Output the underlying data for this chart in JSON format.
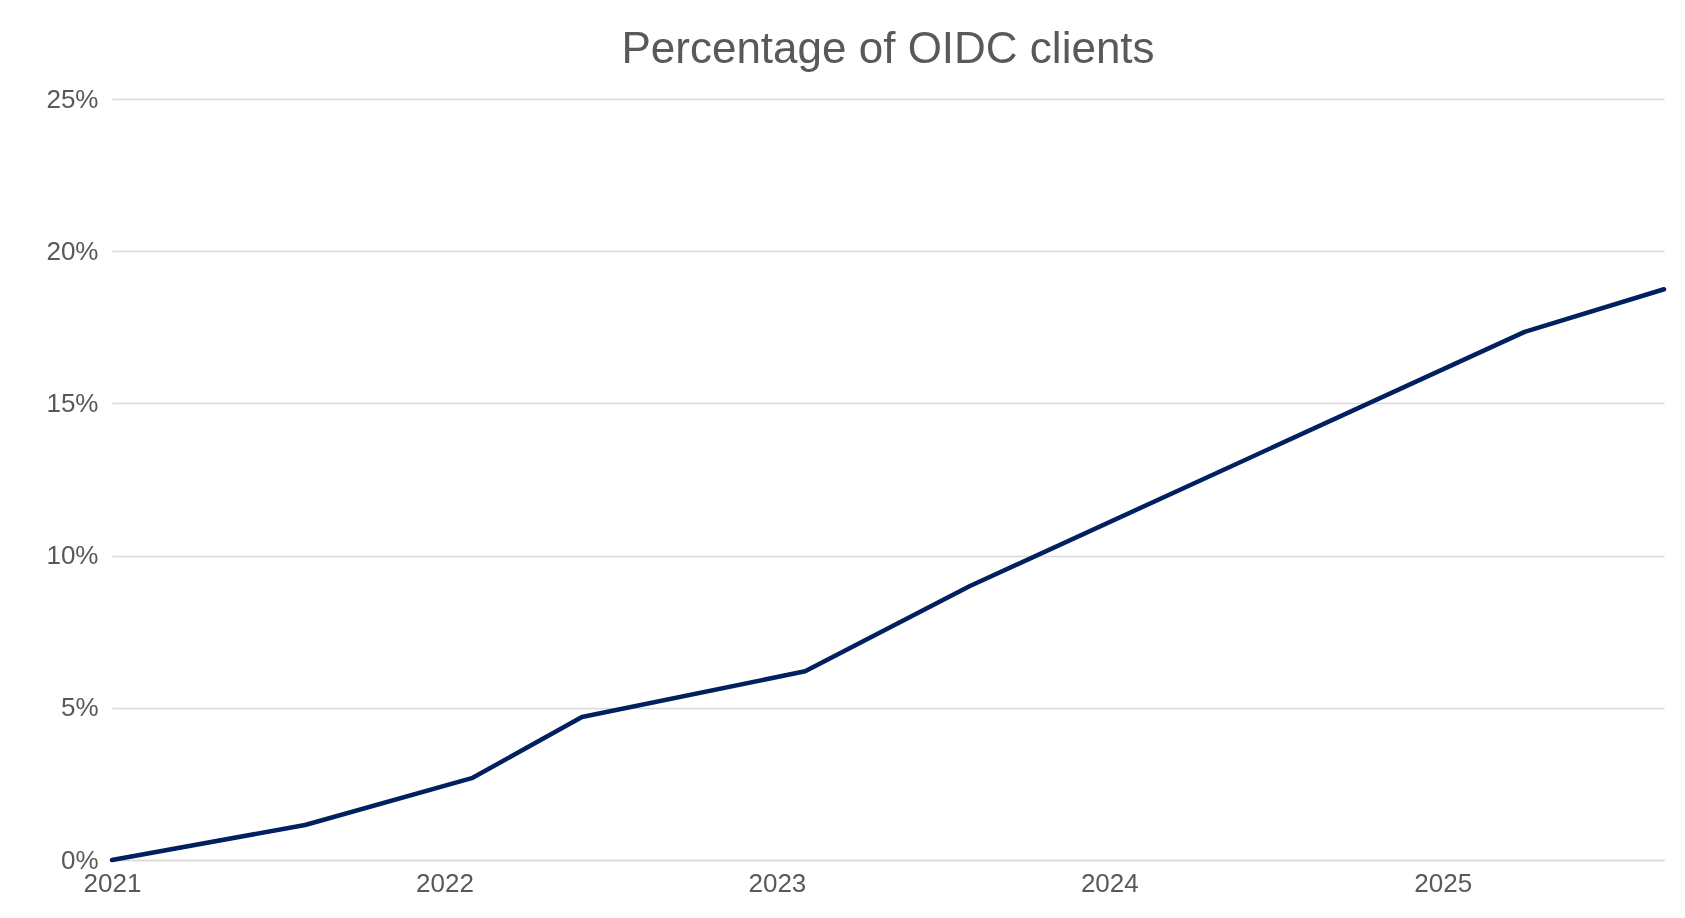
{
  "chart_data": {
    "type": "line",
    "title": "Percentage of OIDC clients",
    "x": [
      "2021-01",
      "2021-08",
      "2022-02",
      "2022-06",
      "2023-02",
      "2023-08",
      "2025-04",
      "2025-09"
    ],
    "series": [
      {
        "color": "#002060",
        "values": [
          0,
          1.15,
          2.7,
          4.7,
          6.2,
          9.0,
          17.35,
          18.75
        ]
      }
    ],
    "xlim": [
      "2021-01",
      "2025-09"
    ],
    "xticks": [
      "2021",
      "2022",
      "2023",
      "2024",
      "2025"
    ],
    "ylim": [
      0,
      25
    ],
    "yticks": [
      {
        "value": 0,
        "label": "0%"
      },
      {
        "value": 5,
        "label": "5%"
      },
      {
        "value": 10,
        "label": "10%"
      },
      {
        "value": 15,
        "label": "15%"
      },
      {
        "value": 20,
        "label": "20%"
      },
      {
        "value": 25,
        "label": "25%"
      }
    ],
    "grid": "y",
    "marker": "none",
    "line_style": "solid"
  }
}
